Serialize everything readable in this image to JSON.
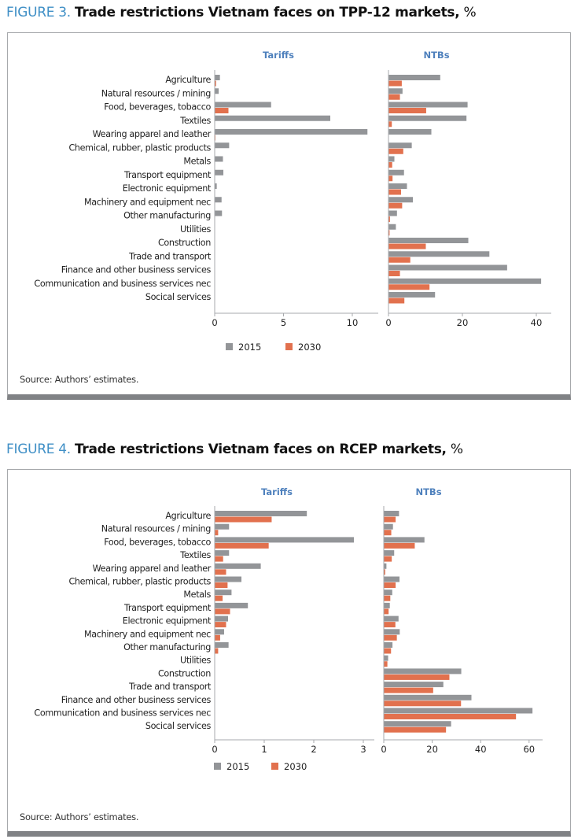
{
  "colors": {
    "series_2015": "#939598",
    "series_2030": "#e2714e",
    "panel_title": "#4f81bd",
    "figure_label": "#3f8fc6"
  },
  "chart_data": [
    {
      "type": "bar",
      "orientation": "horizontal",
      "figure_label": "FIGURE 3.",
      "title": "Trade restrictions Vietnam faces on TPP-12 markets,",
      "unit": "%",
      "source": "Source: Authors’ estimates.",
      "legend": [
        "2015",
        "2030"
      ],
      "legend_placement": "bottom",
      "categories": [
        "Agriculture",
        "Natural resources / mining",
        "Food, beverages, tobacco",
        "Textiles",
        "Wearing apparel and leather",
        "Chemical, rubber, plastic products",
        "Metals",
        "Transport equipment",
        "Electronic equipment",
        "Machinery and equipment nec",
        "Other manufacturing",
        "Utilities",
        "Construction",
        "Trade and transport",
        "Finance and other business services",
        "Communication and business services nec",
        "Socical services"
      ],
      "panels": [
        {
          "title": "Tariffs",
          "xlim": [
            0,
            12
          ],
          "ticks": [
            0,
            5,
            10
          ],
          "series": [
            {
              "name": "2015",
              "values": [
                0.38,
                0.29,
                4.1,
                8.4,
                11.1,
                1.05,
                0.6,
                0.63,
                0.15,
                0.5,
                0.53,
                0,
                0,
                0,
                0,
                0,
                0
              ]
            },
            {
              "name": "2030",
              "values": [
                0.1,
                0,
                1.0,
                0.02,
                0.05,
                0,
                0,
                0,
                0,
                0,
                0,
                0,
                0,
                0,
                0,
                0,
                0
              ]
            }
          ]
        },
        {
          "title": "NTBs",
          "xlim": [
            0,
            44
          ],
          "ticks": [
            0,
            20,
            40
          ],
          "series": [
            {
              "name": "2015",
              "values": [
                14.0,
                3.8,
                21.4,
                21.1,
                11.6,
                6.3,
                1.6,
                4.2,
                5.0,
                6.6,
                2.3,
                2.0,
                21.6,
                27.3,
                32.1,
                41.3,
                12.6
              ]
            },
            {
              "name": "2030",
              "values": [
                3.6,
                3.1,
                10.2,
                0.9,
                0.1,
                4.0,
                1.0,
                1.1,
                3.4,
                3.7,
                0.4,
                0.3,
                10.1,
                5.9,
                3.1,
                11.1,
                4.3
              ]
            }
          ]
        }
      ]
    },
    {
      "type": "bar",
      "orientation": "horizontal",
      "figure_label": "FIGURE 4.",
      "title": "Trade restrictions Vietnam faces on RCEP markets,",
      "unit": "%",
      "source": "Source: Authors’ estimates.",
      "legend": [
        "2015",
        "2030"
      ],
      "legend_placement": "bottom",
      "categories": [
        "Agriculture",
        "Natural resources / mining",
        "Food, beverages, tobacco",
        "Textiles",
        "Wearing apparel and leather",
        "Chemical, rubber, plastic products",
        "Metals",
        "Transport equipment",
        "Electronic equipment",
        "Machinery and equipment nec",
        "Other manufacturing",
        "Utilities",
        "Construction",
        "Trade and transport",
        "Finance and other business services",
        "Communication and business services nec",
        "Socical services"
      ],
      "panels": [
        {
          "title": "Tariffs",
          "xlim": [
            0,
            3.2
          ],
          "ticks": [
            0,
            1,
            2,
            3
          ],
          "series": [
            {
              "name": "2015",
              "values": [
                1.86,
                0.29,
                2.81,
                0.29,
                0.93,
                0.54,
                0.34,
                0.67,
                0.27,
                0.19,
                0.28,
                0,
                0,
                0,
                0,
                0,
                0
              ]
            },
            {
              "name": "2030",
              "values": [
                1.15,
                0.07,
                1.09,
                0.17,
                0.23,
                0.26,
                0.16,
                0.31,
                0.23,
                0.11,
                0.07,
                0,
                0,
                0,
                0,
                0,
                0
              ]
            }
          ]
        },
        {
          "title": "NTBs",
          "xlim": [
            0,
            66
          ],
          "ticks": [
            0,
            20,
            40,
            60
          ],
          "series": [
            {
              "name": "2015",
              "values": [
                6.3,
                3.8,
                16.8,
                4.3,
                1.1,
                6.5,
                3.5,
                2.5,
                6.1,
                6.6,
                3.6,
                1.8,
                32.0,
                24.6,
                36.2,
                61.4,
                27.8
              ]
            },
            {
              "name": "2030",
              "values": [
                4.9,
                3.1,
                12.8,
                3.3,
                0.6,
                4.9,
                2.7,
                2.0,
                4.8,
                5.4,
                3.0,
                1.5,
                27.1,
                20.4,
                31.9,
                54.6,
                25.7
              ]
            }
          ]
        }
      ]
    }
  ]
}
